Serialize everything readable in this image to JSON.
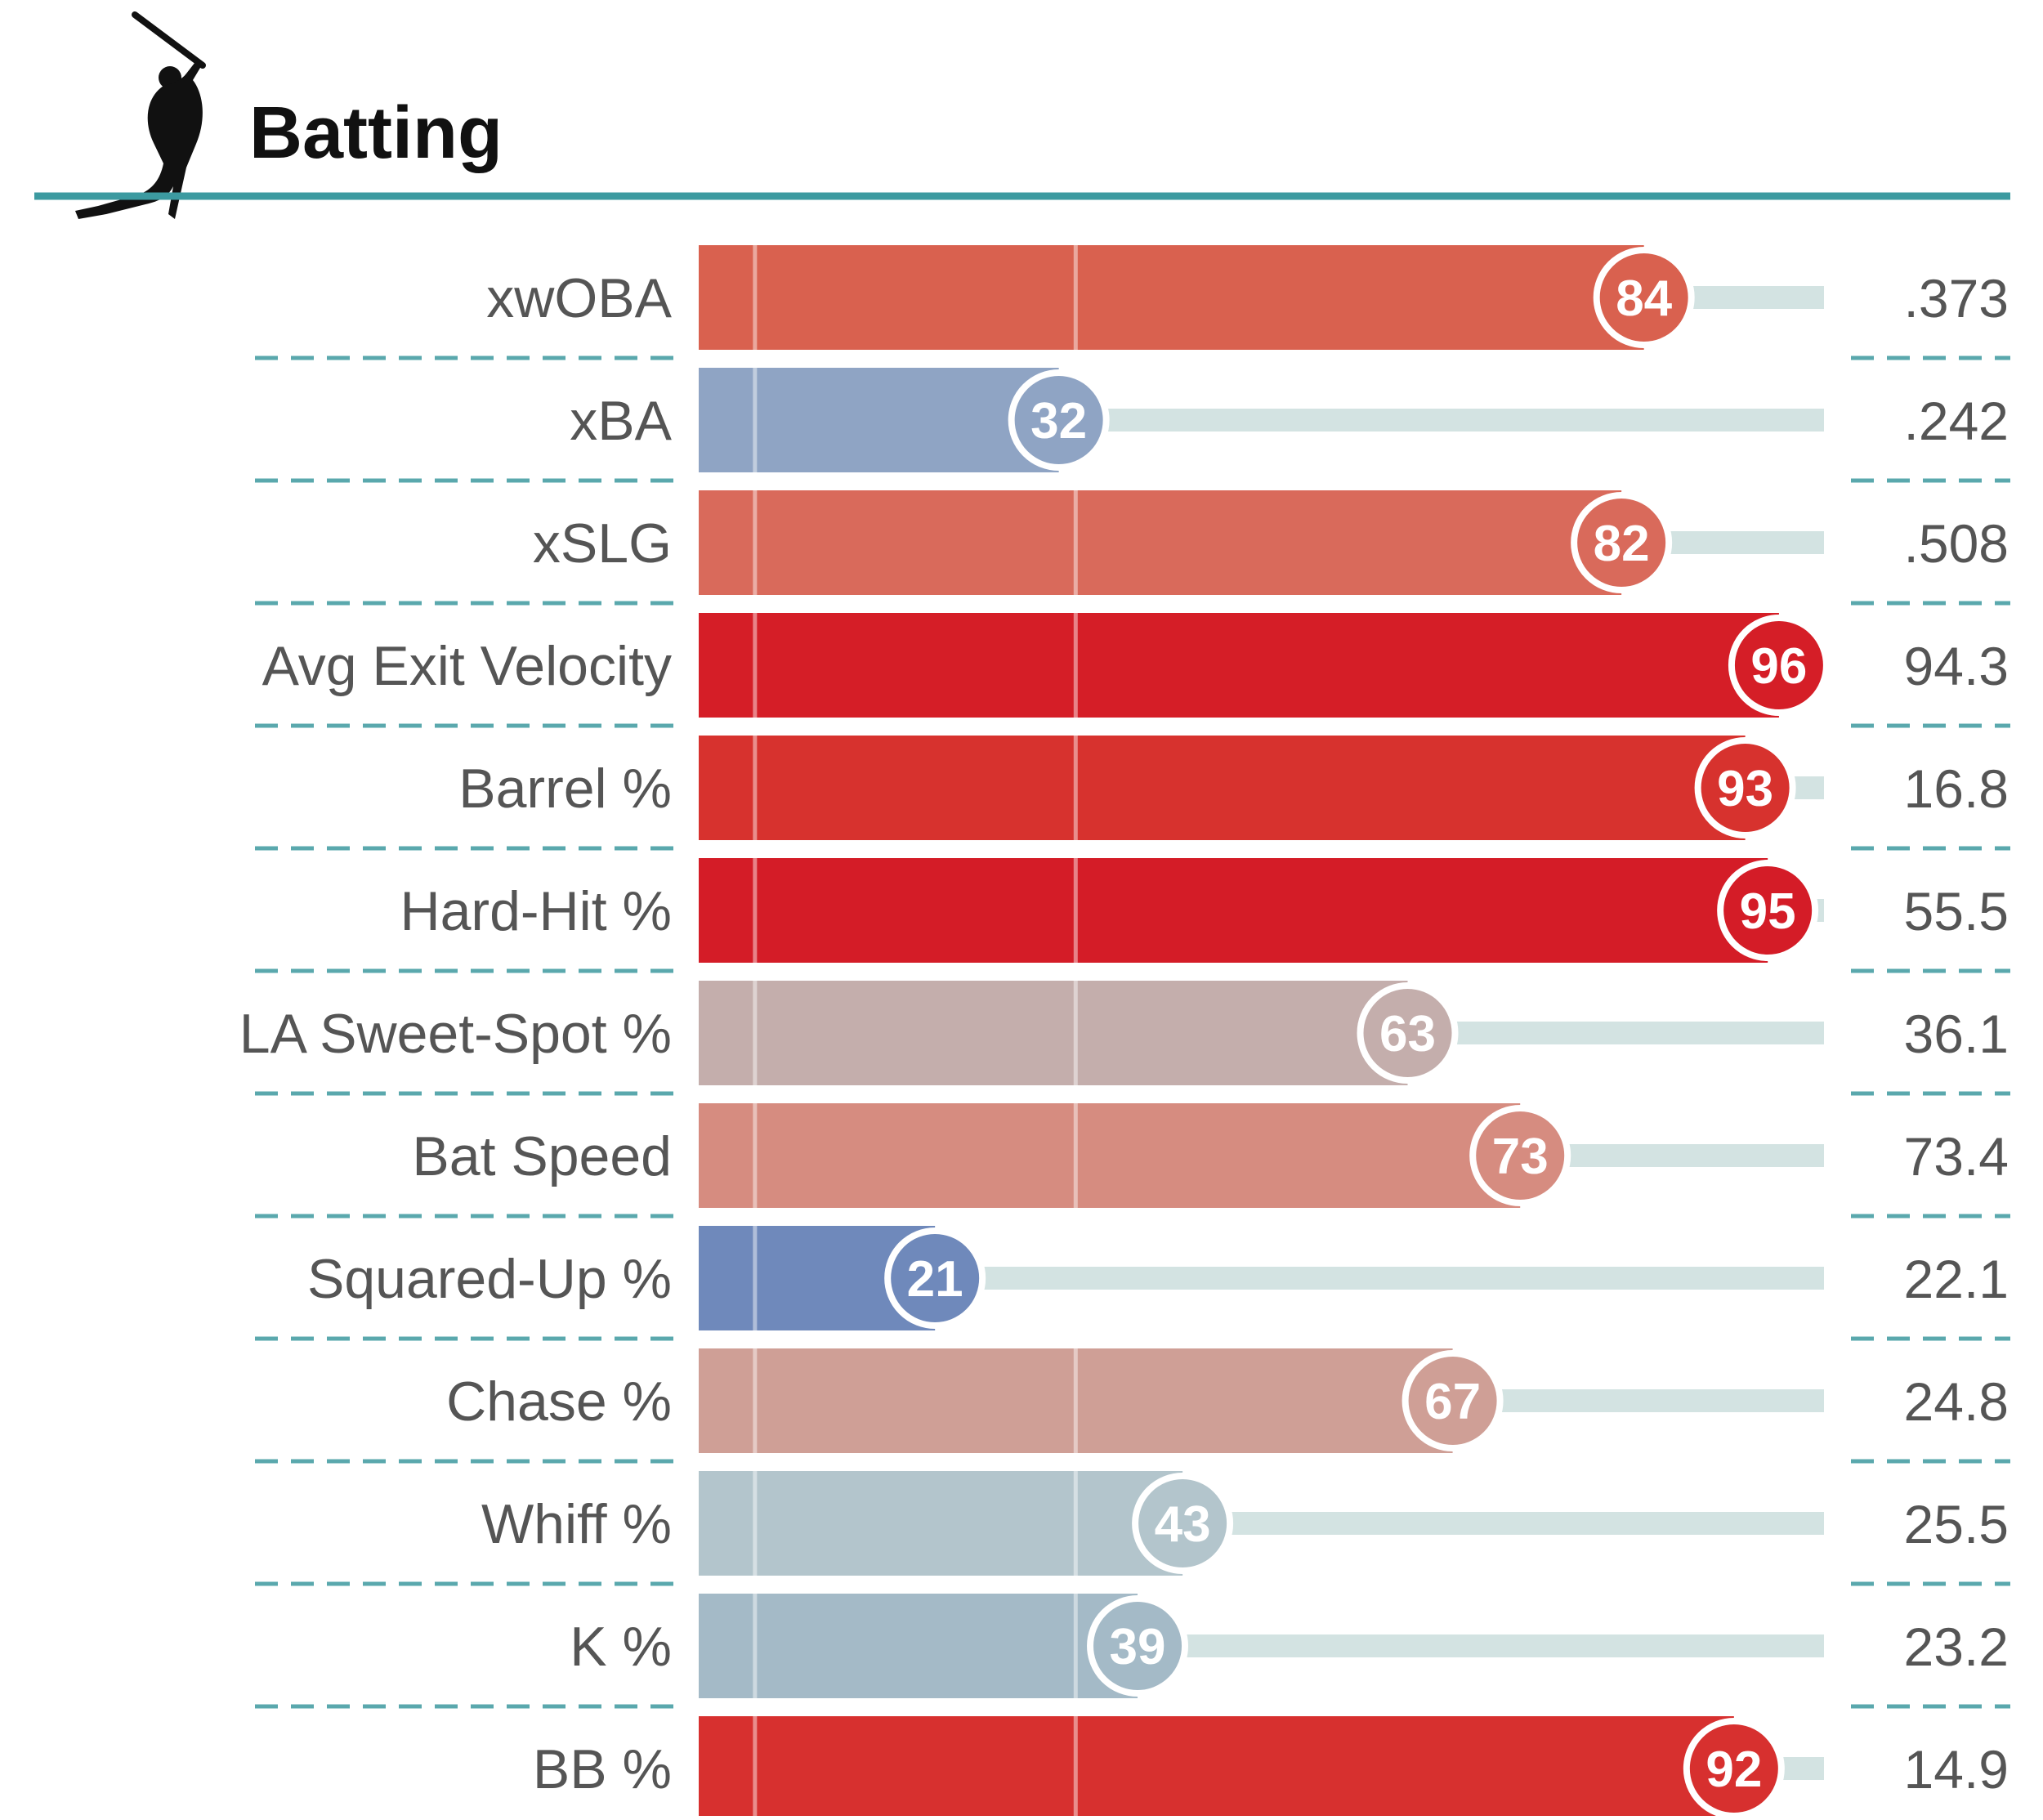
{
  "section": {
    "title": "Batting",
    "icon": "baseball-batter-icon"
  },
  "colors": {
    "header_rule": "#3c9aa0",
    "divider": "#5aa8ad",
    "track": "#d3e3e2",
    "gridline": "#ffffff",
    "label_text": "#555555",
    "value_text": "#555555",
    "title_text": "#111111"
  },
  "chart_data": {
    "type": "bar",
    "orientation": "horizontal",
    "title": "Batting",
    "xlim": [
      0,
      100
    ],
    "categories": [
      "xwOBA",
      "xBA",
      "xSLG",
      "Avg Exit Velocity",
      "Barrel %",
      "Hard-Hit %",
      "LA Sweet-Spot %",
      "Bat Speed",
      "Squared-Up %",
      "Chase %",
      "Whiff %",
      "K %",
      "BB %"
    ],
    "values": [
      84,
      32,
      82,
      96,
      93,
      95,
      63,
      73,
      21,
      67,
      43,
      39,
      92
    ],
    "stat_values": [
      ".373",
      ".242",
      ".508",
      "94.3",
      "16.8",
      "55.5",
      "36.1",
      "73.4",
      "22.1",
      "24.8",
      "25.5",
      "23.2",
      "14.9"
    ],
    "bar_colors": [
      "#d9614f",
      "#8fa4c4",
      "#d96a5b",
      "#d51e27",
      "#d7322e",
      "#d41c27",
      "#c4aeac",
      "#d68c80",
      "#6f89bb",
      "#cf9f96",
      "#b3c5cc",
      "#a4bac7",
      "#d7302f"
    ],
    "grid": true,
    "legend": "none"
  }
}
